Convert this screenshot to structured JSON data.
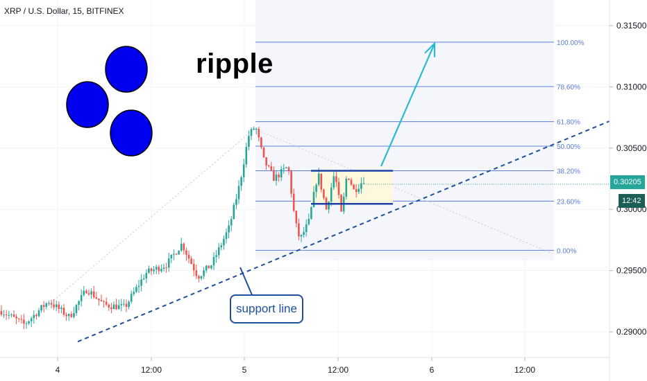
{
  "header": {
    "symbol": "XRP / U.S. Dollar, 15, BITFINEX"
  },
  "brand": {
    "text": "ripple",
    "color": "#0000ee"
  },
  "annotation": {
    "callout": "support line"
  },
  "price_tag": {
    "last_price": "0.30205",
    "countdown": "12:42"
  },
  "chart_data": {
    "type": "candlestick",
    "title": "XRP / U.S. Dollar, 15, BITFINEX",
    "price_range": [
      0.2875,
      0.3195
    ],
    "y_ticks": [
      "0.29000",
      "0.29500",
      "0.30000",
      "0.30500",
      "0.31000",
      "0.31500"
    ],
    "x_ticks": [
      "4",
      "12:00",
      "5",
      "12:00",
      "6",
      "12:00"
    ],
    "fibonacci": {
      "levels": [
        {
          "label": "100.00%",
          "price": 0.31365
        },
        {
          "label": "78.60%",
          "price": 0.31002
        },
        {
          "label": "61.80%",
          "price": 0.30716
        },
        {
          "label": "50.00%",
          "price": 0.30516
        },
        {
          "label": "38.20%",
          "price": 0.30315
        },
        {
          "label": "23.60%",
          "price": 0.30067
        },
        {
          "label": "0.00%",
          "price": 0.29665
        }
      ]
    },
    "range_box": {
      "top": 0.30315,
      "bottom": 0.30045
    },
    "support_line": {
      "from": 0.2892,
      "to": 0.3072
    },
    "target_price": 0.31355,
    "colors": {
      "up": "#26a69a",
      "down": "#ef5350",
      "fib": "#5b7dd8",
      "range": "#1e3ea8",
      "support": "#1e4f9c",
      "arrow": "#2bbbd0",
      "price_tag": "#26a69a",
      "logo": "#0000ee"
    }
  }
}
